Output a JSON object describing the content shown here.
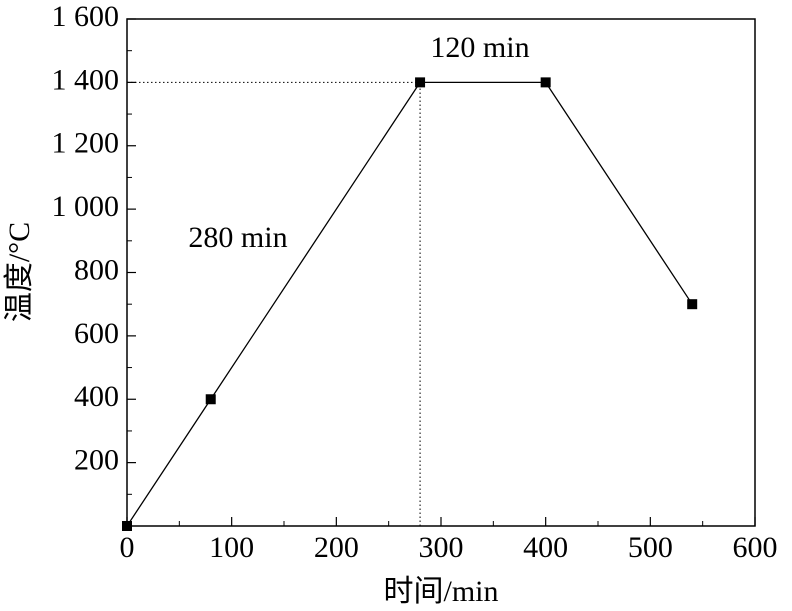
{
  "chart_data": {
    "type": "line",
    "x": [
      0,
      80,
      280,
      400,
      540
    ],
    "series": [
      {
        "color": "#000000",
        "values": [
          0,
          400,
          1400,
          1400,
          700
        ]
      }
    ],
    "xlim": [
      0,
      600
    ],
    "xticks": [
      0,
      100,
      200,
      300,
      400,
      500,
      600
    ],
    "ylim": [
      0,
      1600
    ],
    "yticks": [
      200,
      400,
      600,
      800,
      {
        "value": 1000,
        "label": "1 000"
      },
      {
        "value": 1200,
        "label": "1 200"
      },
      {
        "value": 1400,
        "label": "1 400"
      },
      {
        "value": 1600,
        "label": "1 600"
      }
    ],
    "xlabel": "时间/min",
    "ylabel": "温度/°C",
    "annotations": [
      "280 min",
      "120 min"
    ]
  }
}
